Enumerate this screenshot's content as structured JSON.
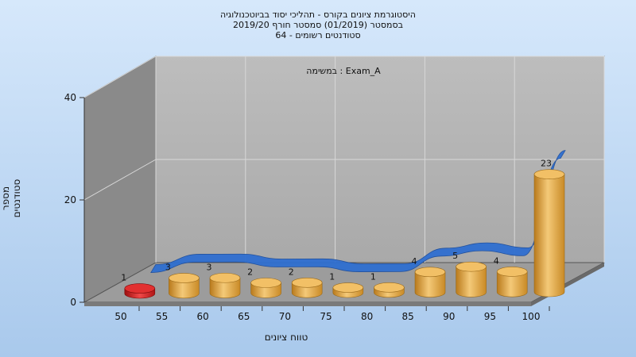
{
  "chart_data": {
    "type": "bar",
    "title_lines": [
      "היסטוגרמת ציונים בקורס - תהליכי יסוד בביוטכנולוגיה",
      "בסמסטר  (01/2019)  סמסטר חורף 2019/20",
      "סטודנטים רשומים - 64"
    ],
    "annotation": "במשימה : Exam_A",
    "xlabel": "טווח ציונים",
    "ylabel": "מספר סטודנטים",
    "x_ticks": [
      "50",
      "55",
      "60",
      "65",
      "70",
      "75",
      "80",
      "85",
      "90",
      "95",
      "100"
    ],
    "y_ticks": [
      "0",
      "20",
      "40"
    ],
    "ylim": [
      0,
      40
    ],
    "categories": [
      "50-55",
      "55-60",
      "60-65",
      "65-70",
      "70-75",
      "75-80",
      "80-85",
      "85-90",
      "90-95",
      "95-100",
      "100"
    ],
    "values": [
      1,
      3,
      3,
      2,
      2,
      1,
      1,
      4,
      5,
      4,
      23
    ],
    "highlight_color": "#d41c1c",
    "bar_color": "#e2a540",
    "curve_color": "#2f6fd0",
    "grid": true
  }
}
